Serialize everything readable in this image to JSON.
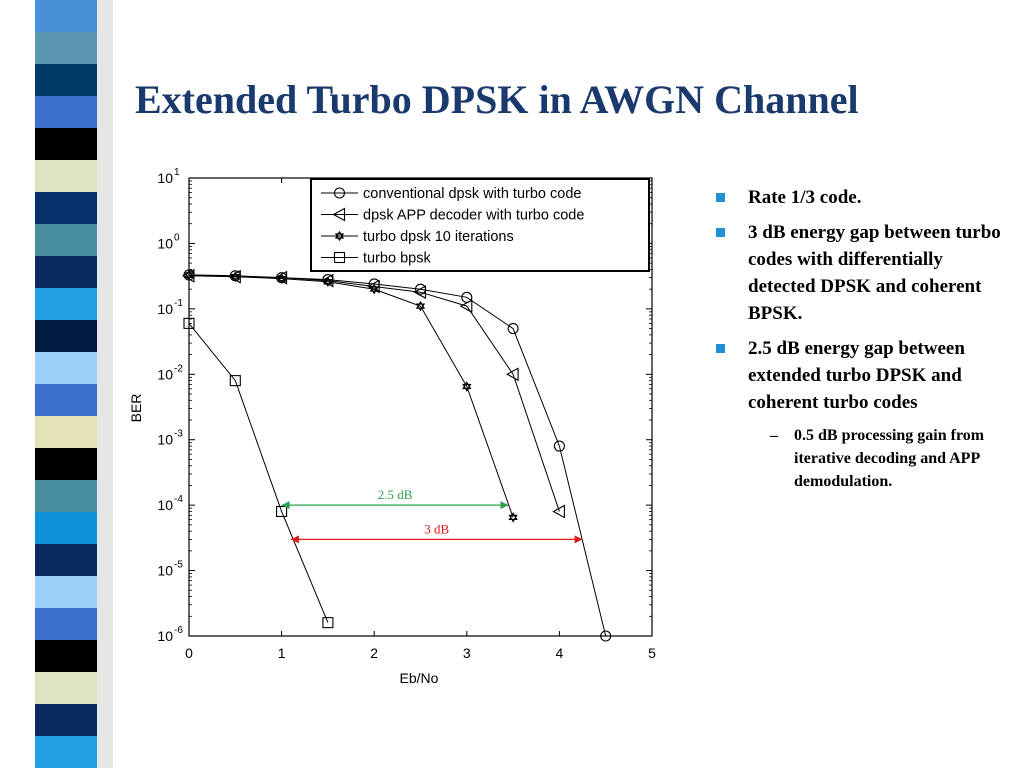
{
  "slide": {
    "title": "Extended Turbo DPSK in AWGN Channel",
    "stripe_colors": [
      "#4a90d9",
      "#5b95b0",
      "#003a66",
      "#3a6fd0",
      "#000000",
      "#dfe3c0",
      "#06306a",
      "#4a8fa0",
      "#0a2a60",
      "#22a0e0",
      "#001a40",
      "#9ccff5",
      "#3a6fd0",
      "#e3e2b8",
      "#000000",
      "#4a8fa0",
      "#1090d8",
      "#0a2a60",
      "#9ccff5",
      "#3a6fd0",
      "#000000",
      "#dfe3c0",
      "#0a2a60",
      "#22a0e0"
    ],
    "accent_color": "#1a3a6e"
  },
  "bullets": [
    {
      "text": "Rate 1/3 code."
    },
    {
      "text": "3 dB energy gap between turbo codes with differentially detected DPSK and coherent BPSK."
    },
    {
      "text": "2.5 dB energy gap between extended turbo DPSK and coherent turbo codes",
      "sub": [
        {
          "text": "0.5 dB processing gain from iterative decoding and APP demodulation."
        }
      ]
    }
  ],
  "chart_data": {
    "type": "line",
    "xlabel": "Eb/No",
    "ylabel": "BER",
    "xlim": [
      0,
      5
    ],
    "ylim": [
      1e-06,
      10
    ],
    "yscale": "log",
    "xticks": [
      "0",
      "1",
      "2",
      "3",
      "4",
      "5"
    ],
    "yticks": [
      {
        "base": "10",
        "exp": "1"
      },
      {
        "base": "10",
        "exp": "0"
      },
      {
        "base": "10",
        "exp": "-1"
      },
      {
        "base": "10",
        "exp": "-2"
      },
      {
        "base": "10",
        "exp": "-3"
      },
      {
        "base": "10",
        "exp": "-4"
      },
      {
        "base": "10",
        "exp": "-5"
      },
      {
        "base": "10",
        "exp": "-6"
      }
    ],
    "legend_position": "top-right",
    "series": [
      {
        "name": "conventional dpsk with turbo code",
        "marker": "circle",
        "x": [
          0,
          0.5,
          1,
          1.5,
          2,
          2.5,
          3,
          3.5,
          4,
          4.5
        ],
        "y": [
          0.33,
          0.32,
          0.3,
          0.28,
          0.24,
          0.2,
          0.15,
          0.05,
          0.0008,
          1e-06
        ]
      },
      {
        "name": "dpsk APP decoder with turbo code",
        "marker": "triangle-left",
        "x": [
          0,
          0.5,
          1,
          1.5,
          2,
          2.5,
          3,
          3.5,
          4
        ],
        "y": [
          0.32,
          0.31,
          0.3,
          0.27,
          0.22,
          0.18,
          0.11,
          0.01,
          8e-05
        ]
      },
      {
        "name": "turbo dpsk 10 iterations",
        "marker": "star",
        "x": [
          0,
          0.5,
          1,
          1.5,
          2,
          2.5,
          3,
          3.5
        ],
        "y": [
          0.33,
          0.31,
          0.29,
          0.26,
          0.2,
          0.11,
          0.0065,
          6.5e-05
        ]
      },
      {
        "name": "turbo bpsk",
        "marker": "square",
        "x": [
          0,
          0.5,
          1,
          1.5
        ],
        "y": [
          0.06,
          0.008,
          8e-05,
          1.6e-06
        ]
      }
    ],
    "annotations": [
      {
        "text": "2.5 dB",
        "x_from": 1.0,
        "x_to": 3.45,
        "y": 0.0001,
        "color": "#2e9e4f"
      },
      {
        "text": "3 dB",
        "x_from": 1.1,
        "x_to": 4.25,
        "y": 3e-05,
        "color": "#e01a1a"
      }
    ]
  }
}
